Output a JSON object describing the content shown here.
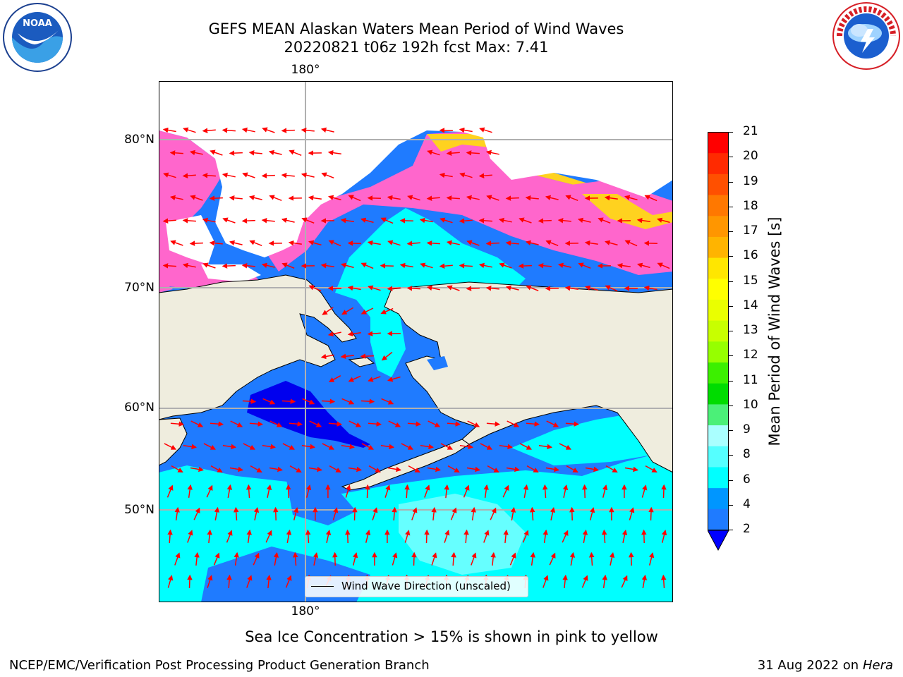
{
  "title": {
    "line1": "GEFS MEAN Alaskan Waters Mean Period of Wind Waves",
    "line2": "20220821 t06z 192h fcst   Max: 7.41"
  },
  "map": {
    "lon_label_top": "180°",
    "lon_label_bottom": "180°",
    "lat_labels": [
      "80°N",
      "70°N",
      "60°N",
      "50°N"
    ],
    "colors": {
      "ocean_2_4": "#1f7bff",
      "ocean_lt2": "#0000ee",
      "ocean_4_6": "#00ffff",
      "ocean_6_8": "#66ffff",
      "land": "#efedde",
      "ice_pink": "#ff66cc",
      "ice_yellow": "#ffd21f",
      "arrow": "#ff0000",
      "grid": "#b0b0b0"
    },
    "legend_label": "Wind Wave Direction (unscaled)"
  },
  "colorbar": {
    "label": "Mean Period of Wind Waves [s]",
    "ticks": [
      "21",
      "20",
      "19",
      "18",
      "17",
      "16",
      "15",
      "14",
      "13",
      "12",
      "11",
      "10",
      "9",
      "8",
      "6",
      "4",
      "2"
    ],
    "colors_top_to_bottom": [
      "#ff0000",
      "#ff2a00",
      "#ff5000",
      "#ff7800",
      "#ff9600",
      "#ffb400",
      "#ffe600",
      "#ffff00",
      "#eaff00",
      "#c8ff00",
      "#96ff00",
      "#3cf000",
      "#00dc00",
      "#4bf078",
      "#aaffff",
      "#55ffff",
      "#00ffff",
      "#0096ff",
      "#1f7bff"
    ],
    "underflow_color": "#0000ff"
  },
  "note": "Sea Ice Concentration > 15% is shown in pink to yellow",
  "footer": {
    "left": "NCEP/EMC/Verification Post Processing Product Generation Branch",
    "right_date": "31 Aug 2022 on",
    "right_host": "Hera"
  }
}
